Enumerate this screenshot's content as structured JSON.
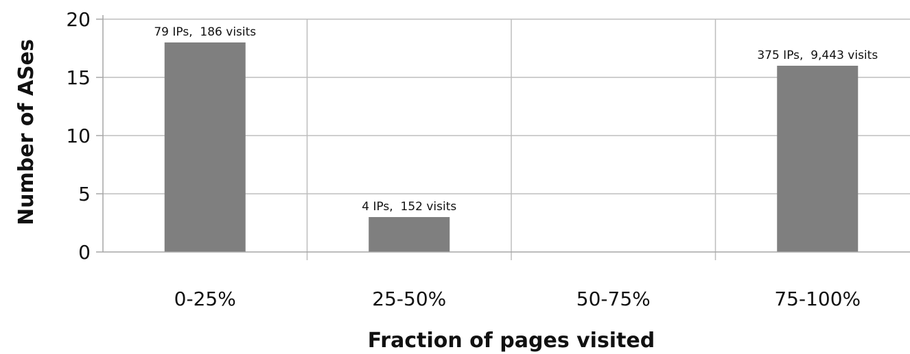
{
  "chart_data": {
    "type": "bar",
    "title": "",
    "xlabel": "Fraction of pages visited",
    "ylabel": "Number of ASes",
    "categories": [
      "0-25%",
      "25-50%",
      "50-75%",
      "75-100%"
    ],
    "values": [
      18,
      3,
      0,
      16
    ],
    "data_labels": [
      "79 IPs,  186 visits",
      "4 IPs,  152 visits",
      "",
      "375 IPs,  9,443 visits"
    ],
    "ylim": [
      0,
      20
    ],
    "yticks": [
      0,
      5,
      10,
      15,
      20
    ],
    "grid": true,
    "bar_color": "#7f7f7f"
  }
}
